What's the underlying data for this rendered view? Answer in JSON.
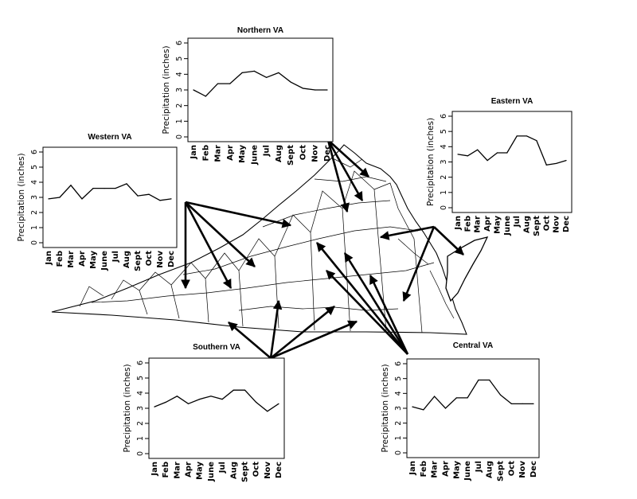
{
  "chart_data": [
    {
      "type": "line",
      "title": "Northern VA",
      "ylabel": "Precipitation (inches)",
      "xlabel": "",
      "categories": [
        "Jan",
        "Feb",
        "Mar",
        "Apr",
        "May",
        "June",
        "Jul",
        "Aug",
        "Sept",
        "Oct",
        "Nov",
        "Dec"
      ],
      "values": [
        3.0,
        2.6,
        3.4,
        3.4,
        4.1,
        4.2,
        3.8,
        4.1,
        3.5,
        3.1,
        3.0,
        3.0
      ],
      "ylim": [
        0,
        6
      ],
      "yticks": [
        "0",
        "1",
        "2",
        "3",
        "4",
        "5",
        "6"
      ],
      "grid": false
    },
    {
      "type": "line",
      "title": "Eastern VA",
      "ylabel": "Precipitation (inches)",
      "xlabel": "",
      "categories": [
        "Jan",
        "Feb",
        "Mar",
        "Apr",
        "May",
        "June",
        "Jul",
        "Aug",
        "Sept",
        "Oct",
        "Nov",
        "Dec"
      ],
      "values": [
        3.5,
        3.4,
        3.8,
        3.1,
        3.6,
        3.6,
        4.7,
        4.7,
        4.4,
        2.8,
        2.9,
        3.1
      ],
      "ylim": [
        0,
        6
      ],
      "yticks": [
        "0",
        "1",
        "2",
        "3",
        "4",
        "5",
        "6"
      ],
      "grid": false
    },
    {
      "type": "line",
      "title": "Western VA",
      "ylabel": "Precipitation (inches)",
      "xlabel": "",
      "categories": [
        "Jan",
        "Feb",
        "Mar",
        "Apr",
        "May",
        "June",
        "Jul",
        "Aug",
        "Sept",
        "Oct",
        "Nov",
        "Dec"
      ],
      "values": [
        2.9,
        3.0,
        3.8,
        2.9,
        3.6,
        3.6,
        3.6,
        3.9,
        3.1,
        3.2,
        2.8,
        2.9
      ],
      "ylim": [
        0,
        6
      ],
      "yticks": [
        "0",
        "1",
        "2",
        "3",
        "4",
        "5",
        "6"
      ],
      "grid": false
    },
    {
      "type": "line",
      "title": "Southern VA",
      "ylabel": "Precipitation (inches)",
      "xlabel": "",
      "categories": [
        "Jan",
        "Feb",
        "Mar",
        "Apr",
        "May",
        "June",
        "Jul",
        "Aug",
        "Sept",
        "Oct",
        "Nov",
        "Dec"
      ],
      "values": [
        3.1,
        3.4,
        3.8,
        3.3,
        3.6,
        3.8,
        3.6,
        4.2,
        4.2,
        3.4,
        2.8,
        3.3
      ],
      "ylim": [
        0,
        6
      ],
      "yticks": [
        "0",
        "1",
        "2",
        "3",
        "4",
        "5",
        "6"
      ],
      "grid": false
    },
    {
      "type": "line",
      "title": "Central VA",
      "ylabel": "Precipitation (inches)",
      "xlabel": "",
      "categories": [
        "Jan",
        "Feb",
        "Mar",
        "Apr",
        "May",
        "June",
        "Jul",
        "Aug",
        "Sept",
        "Oct",
        "Nov",
        "Dec"
      ],
      "values": [
        3.1,
        2.9,
        3.8,
        3.0,
        3.7,
        3.7,
        4.9,
        4.9,
        3.9,
        3.3,
        3.3,
        3.3
      ],
      "ylim": [
        0,
        6
      ],
      "yticks": [
        "0",
        "1",
        "2",
        "3",
        "4",
        "5",
        "6"
      ],
      "grid": false
    }
  ],
  "map": {
    "name": "virginia-county-map",
    "stroke": "#000000",
    "fill": "#ffffff"
  }
}
